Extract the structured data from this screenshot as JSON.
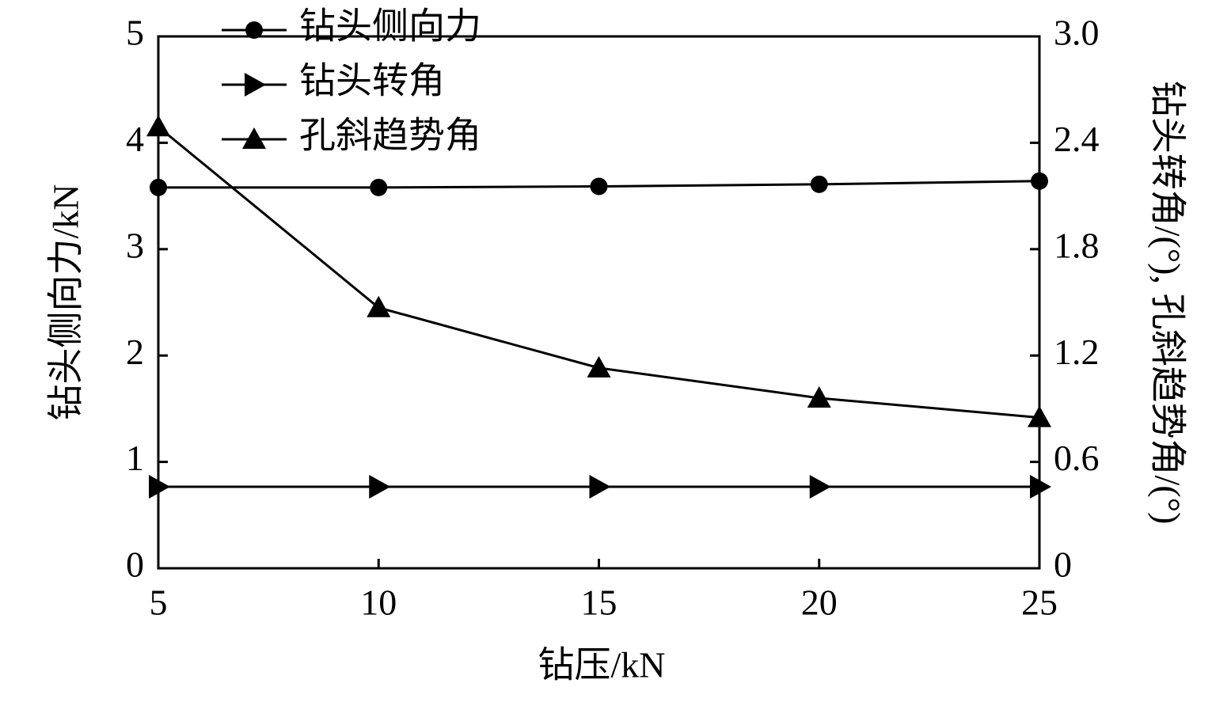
{
  "chart_data": {
    "type": "line",
    "x_label": "钻压/kN",
    "y_label": "钻头侧向力/kN",
    "y2_label": "钻头转角/(°), 孔斜趋势角/(°)",
    "x": [
      5,
      10,
      15,
      20,
      25
    ],
    "xlim": [
      5,
      25
    ],
    "xticks": [
      5,
      10,
      15,
      20,
      25
    ],
    "ylim": [
      0,
      5
    ],
    "yticks": [
      0,
      1,
      2,
      3,
      4,
      5
    ],
    "y2lim": [
      0,
      3
    ],
    "y2ticks": [
      0,
      0.6,
      1.2,
      1.8,
      2.4,
      {
        "value": 3,
        "label": "3.0"
      }
    ],
    "series": [
      {
        "name": "钻头侧向力",
        "color": "#000000",
        "marker": "circle",
        "axis": "y",
        "values": [
          3.58,
          3.58,
          3.59,
          3.61,
          3.64
        ]
      },
      {
        "name": "钻头转角",
        "color": "#000000",
        "marker": "triangle-right",
        "axis": "y2",
        "values": [
          0.46,
          0.46,
          0.46,
          0.46,
          0.46
        ]
      },
      {
        "name": "孔斜趋势角",
        "color": "#000000",
        "marker": "triangle-up",
        "axis": "y2",
        "values": [
          2.49,
          1.47,
          1.13,
          0.96,
          0.85
        ]
      }
    ]
  }
}
